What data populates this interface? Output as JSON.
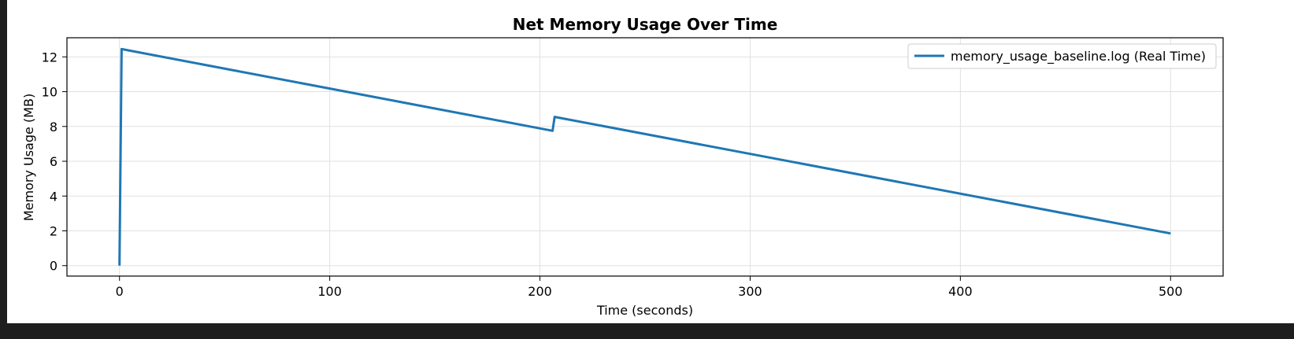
{
  "chart_data": {
    "type": "line",
    "title": "Net Memory Usage Over Time",
    "xlabel": "Time (seconds)",
    "ylabel": "Memory Usage (MB)",
    "xlim": [
      -25,
      525
    ],
    "ylim": [
      -0.6,
      13.1
    ],
    "xticks": [
      0,
      100,
      200,
      300,
      400,
      500
    ],
    "yticks": [
      0,
      2,
      4,
      6,
      8,
      10,
      12
    ],
    "grid": true,
    "legend_position": "top-right",
    "series": [
      {
        "name": "memory_usage_baseline.log (Real Time)",
        "color": "#1f77b4",
        "x": [
          0,
          1,
          206,
          207,
          500
        ],
        "y": [
          0,
          12.45,
          7.75,
          8.55,
          1.85
        ]
      }
    ]
  }
}
